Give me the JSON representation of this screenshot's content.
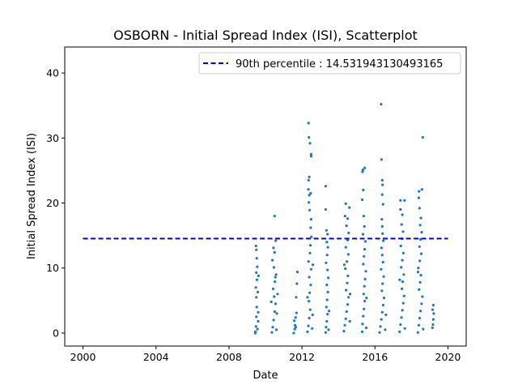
{
  "chart_data": {
    "type": "scatter",
    "title": "OSBORN - Initial Spread Index (ISI), Scatterplot",
    "xlabel": "Date",
    "ylabel": "Initial Spread Index (ISI)",
    "xlim": [
      1999.0,
      2021.0
    ],
    "ylim": [
      -2.0,
      44.0
    ],
    "xticks": [
      2000,
      2004,
      2008,
      2012,
      2016,
      2020
    ],
    "yticks": [
      0,
      10,
      20,
      30,
      40
    ],
    "x_tick_labels": [
      "2000",
      "2004",
      "2008",
      "2012",
      "2016",
      "2020"
    ],
    "y_tick_labels": [
      "0",
      "10",
      "20",
      "30",
      "40"
    ],
    "grid": false,
    "legend_position": "top-right",
    "colors": {
      "points": "#1f77b4",
      "percentile_line": "#0000ff"
    },
    "percentile_line": {
      "label": "90th percentile : 14.531943130493165",
      "value": 14.531943130493165,
      "x_range": [
        2000.0,
        2020.0
      ],
      "style": "dashed"
    },
    "series": [
      {
        "points": [
          [
            2009.45,
            0.2
          ],
          [
            2009.48,
            1.0
          ],
          [
            2009.5,
            2.5
          ],
          [
            2009.52,
            4.0
          ],
          [
            2009.5,
            5.5
          ],
          [
            2009.47,
            7.0
          ],
          [
            2009.53,
            8.2
          ],
          [
            2009.5,
            9.3
          ],
          [
            2009.55,
            10.2
          ],
          [
            2009.52,
            11.5
          ],
          [
            2009.5,
            12.8
          ],
          [
            2009.48,
            13.4
          ],
          [
            2009.56,
            0.6
          ],
          [
            2009.6,
            3.2
          ],
          [
            2009.58,
            6.3
          ],
          [
            2009.62,
            8.8
          ],
          [
            2009.44,
            0.0
          ],
          [
            2009.6,
            1.8
          ],
          [
            2010.35,
            0.1
          ],
          [
            2010.4,
            0.9
          ],
          [
            2010.45,
            2.0
          ],
          [
            2010.5,
            3.3
          ],
          [
            2010.55,
            4.5
          ],
          [
            2010.48,
            5.6
          ],
          [
            2010.42,
            6.8
          ],
          [
            2010.52,
            7.9
          ],
          [
            2010.58,
            9.0
          ],
          [
            2010.46,
            10.1
          ],
          [
            2010.38,
            11.2
          ],
          [
            2010.5,
            12.4
          ],
          [
            2010.44,
            13.1
          ],
          [
            2010.56,
            14.2
          ],
          [
            2010.5,
            18.0
          ],
          [
            2010.6,
            0.5
          ],
          [
            2010.62,
            3.0
          ],
          [
            2010.32,
            4.8
          ],
          [
            2010.66,
            6.0
          ],
          [
            2010.54,
            8.6
          ],
          [
            2011.55,
            0.0
          ],
          [
            2011.6,
            0.6
          ],
          [
            2011.62,
            1.2
          ],
          [
            2011.58,
            1.9
          ],
          [
            2011.65,
            2.4
          ],
          [
            2011.7,
            3.1
          ],
          [
            2011.68,
            5.5
          ],
          [
            2011.72,
            7.6
          ],
          [
            2011.75,
            9.4
          ],
          [
            2011.66,
            0.9
          ],
          [
            2012.3,
            0.2
          ],
          [
            2012.35,
            1.1
          ],
          [
            2012.4,
            2.3
          ],
          [
            2012.45,
            3.6
          ],
          [
            2012.38,
            4.9
          ],
          [
            2012.42,
            6.2
          ],
          [
            2012.48,
            7.4
          ],
          [
            2012.4,
            8.6
          ],
          [
            2012.5,
            9.8
          ],
          [
            2012.36,
            11.0
          ],
          [
            2012.44,
            12.3
          ],
          [
            2012.46,
            13.5
          ],
          [
            2012.52,
            14.8
          ],
          [
            2012.48,
            16.2
          ],
          [
            2012.5,
            17.5
          ],
          [
            2012.42,
            18.9
          ],
          [
            2012.38,
            20.1
          ],
          [
            2012.4,
            21.2
          ],
          [
            2012.48,
            21.5
          ],
          [
            2012.35,
            22.1
          ],
          [
            2012.36,
            23.5
          ],
          [
            2012.4,
            24.0
          ],
          [
            2012.5,
            27.2
          ],
          [
            2012.5,
            27.5
          ],
          [
            2012.44,
            29.2
          ],
          [
            2012.38,
            30.1
          ],
          [
            2012.36,
            32.3
          ],
          [
            2012.56,
            0.7
          ],
          [
            2012.58,
            2.8
          ],
          [
            2012.3,
            5.5
          ],
          [
            2012.6,
            10.5
          ],
          [
            2013.3,
            0.1
          ],
          [
            2013.32,
            0.9
          ],
          [
            2013.36,
            1.8
          ],
          [
            2013.4,
            2.9
          ],
          [
            2013.34,
            4.0
          ],
          [
            2013.38,
            5.1
          ],
          [
            2013.42,
            6.3
          ],
          [
            2013.36,
            7.4
          ],
          [
            2013.44,
            8.5
          ],
          [
            2013.4,
            9.7
          ],
          [
            2013.32,
            10.8
          ],
          [
            2013.38,
            12.0
          ],
          [
            2013.42,
            13.2
          ],
          [
            2013.36,
            14.0
          ],
          [
            2013.4,
            15.2
          ],
          [
            2013.34,
            15.8
          ],
          [
            2013.3,
            19.0
          ],
          [
            2013.3,
            22.6
          ],
          [
            2013.46,
            0.5
          ],
          [
            2013.48,
            3.4
          ],
          [
            2014.3,
            0.3
          ],
          [
            2014.35,
            1.2
          ],
          [
            2014.4,
            2.2
          ],
          [
            2014.45,
            3.3
          ],
          [
            2014.5,
            4.4
          ],
          [
            2014.55,
            5.5
          ],
          [
            2014.42,
            6.6
          ],
          [
            2014.48,
            7.7
          ],
          [
            2014.52,
            8.8
          ],
          [
            2014.38,
            9.9
          ],
          [
            2014.46,
            11.0
          ],
          [
            2014.54,
            12.1
          ],
          [
            2014.4,
            13.2
          ],
          [
            2014.5,
            14.3
          ],
          [
            2014.56,
            15.4
          ],
          [
            2014.44,
            16.5
          ],
          [
            2014.5,
            17.6
          ],
          [
            2014.36,
            18.0
          ],
          [
            2014.6,
            19.3
          ],
          [
            2014.4,
            19.9
          ],
          [
            2014.62,
            1.8
          ],
          [
            2014.64,
            6.0
          ],
          [
            2014.32,
            10.5
          ],
          [
            2015.3,
            0.2
          ],
          [
            2015.32,
            1.4
          ],
          [
            2015.36,
            2.6
          ],
          [
            2015.4,
            3.7
          ],
          [
            2015.44,
            4.9
          ],
          [
            2015.38,
            6.0
          ],
          [
            2015.42,
            7.2
          ],
          [
            2015.46,
            8.3
          ],
          [
            2015.5,
            9.5
          ],
          [
            2015.36,
            10.6
          ],
          [
            2015.4,
            11.8
          ],
          [
            2015.44,
            12.9
          ],
          [
            2015.48,
            14.1
          ],
          [
            2015.34,
            15.2
          ],
          [
            2015.42,
            16.4
          ],
          [
            2015.38,
            18.0
          ],
          [
            2015.3,
            20.5
          ],
          [
            2015.36,
            22.0
          ],
          [
            2015.32,
            24.8
          ],
          [
            2015.34,
            25.1
          ],
          [
            2015.44,
            25.4
          ],
          [
            2015.52,
            0.8
          ],
          [
            2015.54,
            5.4
          ],
          [
            2016.25,
            0.1
          ],
          [
            2016.3,
            1.0
          ],
          [
            2016.35,
            2.1
          ],
          [
            2016.4,
            3.2
          ],
          [
            2016.45,
            4.3
          ],
          [
            2016.5,
            5.4
          ],
          [
            2016.38,
            6.5
          ],
          [
            2016.42,
            7.6
          ],
          [
            2016.48,
            8.7
          ],
          [
            2016.34,
            9.8
          ],
          [
            2016.44,
            10.9
          ],
          [
            2016.4,
            12.0
          ],
          [
            2016.36,
            13.1
          ],
          [
            2016.46,
            14.2
          ],
          [
            2016.42,
            15.3
          ],
          [
            2016.4,
            16.4
          ],
          [
            2016.38,
            17.5
          ],
          [
            2016.44,
            19.8
          ],
          [
            2016.4,
            21.3
          ],
          [
            2016.42,
            22.8
          ],
          [
            2016.4,
            23.5
          ],
          [
            2016.36,
            26.7
          ],
          [
            2016.34,
            35.2
          ],
          [
            2016.56,
            0.5
          ],
          [
            2016.6,
            2.8
          ],
          [
            2017.35,
            0.2
          ],
          [
            2017.4,
            1.3
          ],
          [
            2017.45,
            2.4
          ],
          [
            2017.5,
            3.5
          ],
          [
            2017.55,
            4.6
          ],
          [
            2017.6,
            5.7
          ],
          [
            2017.48,
            6.8
          ],
          [
            2017.52,
            7.9
          ],
          [
            2017.58,
            9.0
          ],
          [
            2017.44,
            10.1
          ],
          [
            2017.5,
            11.2
          ],
          [
            2017.56,
            12.3
          ],
          [
            2017.42,
            13.4
          ],
          [
            2017.5,
            14.5
          ],
          [
            2017.54,
            15.6
          ],
          [
            2017.46,
            16.7
          ],
          [
            2017.5,
            18.2
          ],
          [
            2017.4,
            19.0
          ],
          [
            2017.4,
            20.4
          ],
          [
            2017.62,
            20.4
          ],
          [
            2017.64,
            0.7
          ],
          [
            2017.36,
            8.2
          ],
          [
            2018.35,
            0.1
          ],
          [
            2018.4,
            1.2
          ],
          [
            2018.45,
            2.3
          ],
          [
            2018.5,
            3.4
          ],
          [
            2018.55,
            4.5
          ],
          [
            2018.6,
            5.6
          ],
          [
            2018.42,
            6.7
          ],
          [
            2018.48,
            7.8
          ],
          [
            2018.52,
            8.9
          ],
          [
            2018.38,
            10.0
          ],
          [
            2018.46,
            11.1
          ],
          [
            2018.54,
            12.2
          ],
          [
            2018.44,
            13.3
          ],
          [
            2018.5,
            14.4
          ],
          [
            2018.56,
            15.5
          ],
          [
            2018.48,
            16.6
          ],
          [
            2018.52,
            17.7
          ],
          [
            2018.44,
            19.2
          ],
          [
            2018.4,
            20.8
          ],
          [
            2018.42,
            21.8
          ],
          [
            2018.58,
            22.1
          ],
          [
            2018.62,
            30.1
          ],
          [
            2018.64,
            0.6
          ],
          [
            2018.36,
            9.4
          ],
          [
            2019.15,
            0.8
          ],
          [
            2019.18,
            1.3
          ],
          [
            2019.2,
            2.1
          ],
          [
            2019.22,
            3.0
          ],
          [
            2019.16,
            3.6
          ],
          [
            2019.2,
            4.3
          ]
        ]
      }
    ]
  }
}
